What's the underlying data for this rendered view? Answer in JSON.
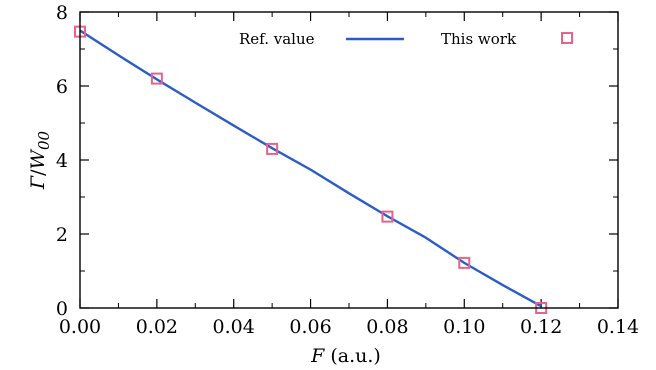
{
  "chart_data": {
    "type": "line",
    "xlabel": {
      "var": "F",
      "unit": " (a.u.)"
    },
    "ylabel": {
      "var": "Γ",
      "slash": "/",
      "w": "W",
      "sub": "00"
    },
    "xlim": [
      0,
      0.14
    ],
    "ylim": [
      0,
      8
    ],
    "x_ticks": [
      "0.00",
      "0.02",
      "0.04",
      "0.06",
      "0.08",
      "0.10",
      "0.12",
      "0.14"
    ],
    "y_ticks": [
      "0",
      "2",
      "4",
      "6",
      "8"
    ],
    "legend_placement": "top-right",
    "series": [
      {
        "name": "Ref. value",
        "style": "line",
        "color": "#2c5cc8",
        "x": [
          0.0,
          0.01,
          0.02,
          0.03,
          0.04,
          0.05,
          0.06,
          0.07,
          0.08,
          0.09,
          0.1,
          0.11,
          0.12
        ],
        "y": [
          7.5,
          6.83,
          6.18,
          5.55,
          4.93,
          4.32,
          3.74,
          3.1,
          2.48,
          1.9,
          1.22,
          0.62,
          0.05
        ]
      },
      {
        "name": "This work",
        "style": "marker",
        "marker": "square",
        "color": "#e8638a",
        "x": [
          0.0,
          0.02,
          0.05,
          0.08,
          0.1,
          0.12
        ],
        "y": [
          7.47,
          6.2,
          4.3,
          2.47,
          1.22,
          0.0
        ]
      }
    ]
  }
}
